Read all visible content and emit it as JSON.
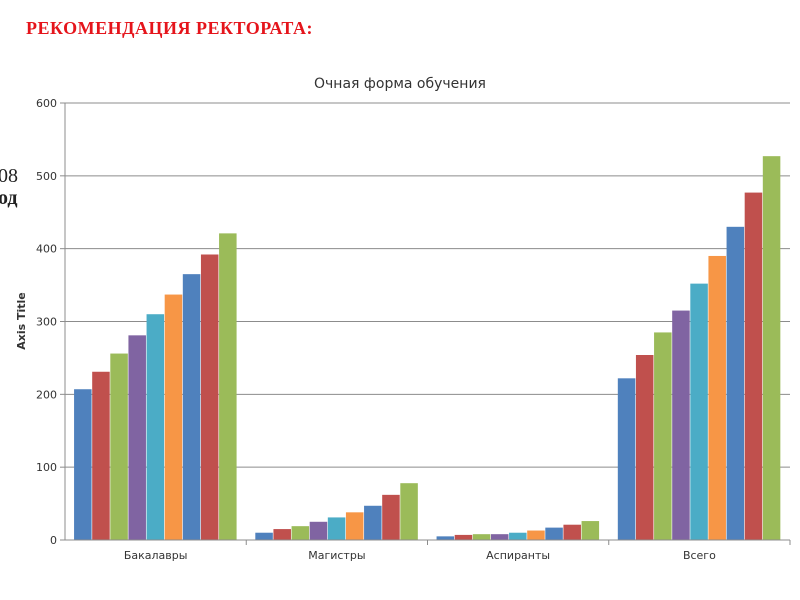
{
  "slide": {
    "heading": "РЕКОМЕНДАЦИЯ РЕКТОРАТА:",
    "heading_color": "#e5141b",
    "side_fragments": [
      "08",
      "од"
    ]
  },
  "chart_data": {
    "type": "bar",
    "title": "Очная форма обучения",
    "xlabel": "",
    "ylabel": "Axis Title",
    "ylim": [
      0,
      600
    ],
    "yticks": [
      0,
      100,
      200,
      300,
      400,
      500,
      600
    ],
    "grid": true,
    "legend": "none",
    "categories": [
      "Бакалавры",
      "Магистры",
      "Аспиранты",
      "Всего"
    ],
    "series_colors": [
      "#4f81bd",
      "#c0504d",
      "#9bbb59",
      "#8064a2",
      "#4bacc6",
      "#f79646",
      "#4f81bd",
      "#c0504d",
      "#9bbb59"
    ],
    "series": [
      {
        "values": [
          207,
          10,
          5,
          222
        ]
      },
      {
        "values": [
          231,
          15,
          7,
          254
        ]
      },
      {
        "values": [
          256,
          19,
          8,
          285
        ]
      },
      {
        "values": [
          281,
          25,
          8,
          315
        ]
      },
      {
        "values": [
          310,
          31,
          10,
          352
        ]
      },
      {
        "values": [
          337,
          38,
          13,
          390
        ]
      },
      {
        "values": [
          365,
          47,
          17,
          430
        ]
      },
      {
        "values": [
          392,
          62,
          21,
          477
        ]
      },
      {
        "values": [
          421,
          78,
          26,
          527
        ]
      }
    ]
  }
}
